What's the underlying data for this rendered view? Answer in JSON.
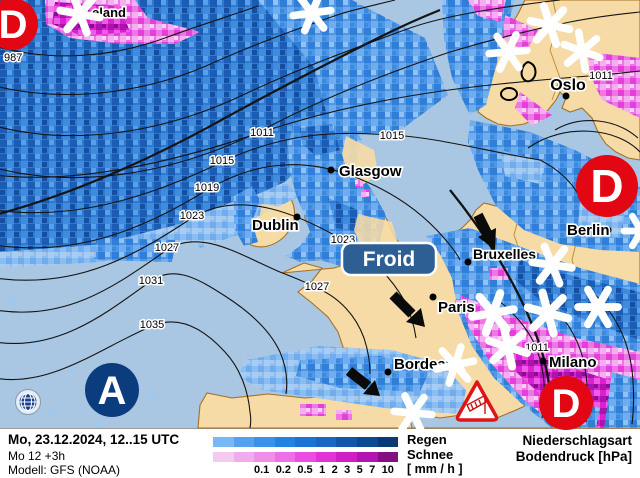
{
  "map": {
    "region_partial_label": "eland",
    "cold_label": "Froid",
    "cities": [
      {
        "name": "Oslo"
      },
      {
        "name": "Glasgow"
      },
      {
        "name": "Dublin"
      },
      {
        "name": "Bruxelles"
      },
      {
        "name": "Berlin"
      },
      {
        "name": "Paris"
      },
      {
        "name": "Bordeaux"
      },
      {
        "name": "Milano"
      }
    ],
    "isobar_labels": [
      "987",
      "1011",
      "1015",
      "1019",
      "1023",
      "1027",
      "1031",
      "1035",
      "1015",
      "1023",
      "1027",
      "1011",
      "1011"
    ],
    "pressure_centers": [
      {
        "letter": "D",
        "meaning": "low-pressure",
        "color": "#e30613"
      },
      {
        "letter": "D",
        "meaning": "low-pressure",
        "color": "#e30613"
      },
      {
        "letter": "D",
        "meaning": "low-pressure",
        "color": "#e30613"
      },
      {
        "letter": "A",
        "meaning": "high-pressure",
        "color": "#0a3c7e"
      }
    ]
  },
  "statusbar": {
    "datetime": "Mo, 23.12.2024, 12..15 UTC",
    "run_info": "Mo 12 +3h",
    "model": "Modell: GFS (NOAA)"
  },
  "legend": {
    "rain_label": "Regen",
    "snow_label": "Schnee",
    "unit_label": "[ mm / h ]",
    "ticks": [
      "0.1",
      "0.2",
      "0.5",
      "1",
      "2",
      "3",
      "5",
      "7",
      "10"
    ],
    "rain_colors": [
      "#79b7f5",
      "#55a1ef",
      "#3991e9",
      "#2383e2",
      "#1b74d4",
      "#1a66c2",
      "#1355a8",
      "#0e4890",
      "#0a3a74"
    ],
    "snow_colors": [
      "#f3cbf0",
      "#f2abee",
      "#f08fea",
      "#ee6fe6",
      "#ea4ee0",
      "#e233d8",
      "#d01dc8",
      "#b214b2",
      "#831083"
    ],
    "type_label": "Niederschlagsart",
    "pressure_unit_label": "Bodendruck [hPa]"
  }
}
